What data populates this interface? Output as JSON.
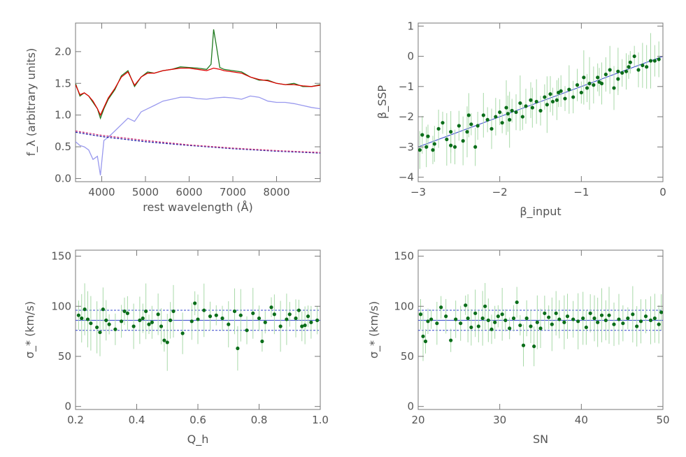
{
  "chart_data": [
    {
      "type": "line",
      "xlabel": "rest wavelength (Å)",
      "ylabel": "f_λ (arbitrary units)",
      "xlim": [
        3400,
        9000
      ],
      "ylim": [
        -0.05,
        2.45
      ],
      "xticks": [
        4000,
        5000,
        6000,
        7000,
        8000
      ],
      "yticks": [
        0.0,
        0.5,
        1.0,
        1.5,
        2.0
      ],
      "xticklabels": [
        "4000",
        "5000",
        "6000",
        "7000",
        "8000"
      ],
      "yticklabels": [
        "0.0",
        "0.5",
        "1.0",
        "1.5",
        "2.0"
      ],
      "grid": false,
      "series": [
        {
          "color": "#1f7a1f",
          "style": "solid",
          "x": [
            3400,
            3500,
            3600,
            3700,
            3800,
            3900,
            3970,
            4050,
            4150,
            4300,
            4450,
            4600,
            4750,
            4900,
            5050,
            5200,
            5400,
            5600,
            5800,
            6000,
            6200,
            6400,
            6500,
            6560,
            6620,
            6700,
            6800,
            7000,
            7200,
            7400,
            7600,
            7800,
            8000,
            8200,
            8400,
            8600,
            8800,
            9000
          ],
          "y": [
            1.5,
            1.3,
            1.35,
            1.3,
            1.2,
            1.1,
            0.95,
            1.1,
            1.25,
            1.4,
            1.62,
            1.7,
            1.45,
            1.6,
            1.68,
            1.66,
            1.7,
            1.72,
            1.76,
            1.75,
            1.74,
            1.72,
            1.8,
            2.35,
            2.1,
            1.75,
            1.72,
            1.7,
            1.68,
            1.6,
            1.55,
            1.55,
            1.5,
            1.48,
            1.5,
            1.45,
            1.45,
            1.48
          ]
        },
        {
          "color": "#e00000",
          "style": "solid",
          "x": [
            3400,
            3500,
            3600,
            3700,
            3800,
            3900,
            3970,
            4050,
            4150,
            4300,
            4450,
            4600,
            4750,
            4900,
            5050,
            5200,
            5400,
            5600,
            5800,
            6000,
            6200,
            6400,
            6560,
            6700,
            6800,
            7000,
            7200,
            7400,
            7600,
            7800,
            8000,
            8200,
            8400,
            8600,
            8800,
            9000
          ],
          "y": [
            1.48,
            1.32,
            1.35,
            1.3,
            1.22,
            1.1,
            1.0,
            1.12,
            1.27,
            1.42,
            1.6,
            1.68,
            1.47,
            1.6,
            1.66,
            1.66,
            1.7,
            1.72,
            1.74,
            1.74,
            1.72,
            1.7,
            1.74,
            1.72,
            1.7,
            1.68,
            1.66,
            1.6,
            1.56,
            1.54,
            1.5,
            1.48,
            1.48,
            1.46,
            1.45,
            1.47
          ]
        },
        {
          "color": "#9999ee",
          "style": "solid",
          "x": [
            3400,
            3500,
            3600,
            3700,
            3800,
            3900,
            3970,
            4050,
            4150,
            4300,
            4450,
            4600,
            4750,
            4900,
            5050,
            5200,
            5400,
            5600,
            5800,
            6000,
            6200,
            6400,
            6600,
            6800,
            7000,
            7200,
            7400,
            7600,
            7800,
            8000,
            8200,
            8400,
            8600,
            8800,
            9000
          ],
          "y": [
            0.58,
            0.52,
            0.5,
            0.45,
            0.3,
            0.35,
            0.05,
            0.6,
            0.65,
            0.75,
            0.85,
            0.95,
            0.9,
            1.05,
            1.1,
            1.15,
            1.22,
            1.25,
            1.28,
            1.28,
            1.26,
            1.25,
            1.27,
            1.28,
            1.27,
            1.25,
            1.3,
            1.28,
            1.22,
            1.2,
            1.2,
            1.18,
            1.15,
            1.12,
            1.1
          ]
        },
        {
          "color": "#2222aa",
          "style": "dashed",
          "x": [
            3400,
            4000,
            5000,
            6000,
            7000,
            8000,
            9000
          ],
          "y": [
            0.73,
            0.66,
            0.58,
            0.52,
            0.47,
            0.43,
            0.4
          ]
        },
        {
          "color": "#cc3377",
          "style": "dashed",
          "x": [
            3400,
            4000,
            5000,
            6000,
            7000,
            8000,
            9000
          ],
          "y": [
            0.75,
            0.68,
            0.6,
            0.53,
            0.48,
            0.44,
            0.41
          ]
        }
      ]
    },
    {
      "type": "scatter",
      "xlabel": "β_input",
      "ylabel": "β_SSP",
      "xlim": [
        -3,
        0
      ],
      "ylim": [
        -4.15,
        1.1
      ],
      "xticks": [
        -3,
        -2,
        -1,
        0
      ],
      "yticks": [
        -4,
        -3,
        -2,
        -1,
        0,
        1
      ],
      "xticklabels": [
        "−3",
        "−2",
        "−1",
        "0"
      ],
      "yticklabels": [
        "−4",
        "−3",
        "−2",
        "−1",
        "0",
        "1"
      ],
      "grid": false,
      "point_color": "#0b6e1a",
      "errorbar_color": "#a8d9a8",
      "reference_line": {
        "color": "#3344cc",
        "x": [
          -3,
          0
        ],
        "y": [
          -3,
          0
        ]
      },
      "points": [
        [
          -2.95,
          -2.6
        ],
        [
          -2.9,
          -3.0
        ],
        [
          -2.88,
          -2.65
        ],
        [
          -2.82,
          -3.1
        ],
        [
          -2.8,
          -2.9
        ],
        [
          -2.75,
          -2.4
        ],
        [
          -2.7,
          -2.2
        ],
        [
          -2.65,
          -2.75
        ],
        [
          -2.6,
          -2.5
        ],
        [
          -2.55,
          -3.0
        ],
        [
          -2.5,
          -2.3
        ],
        [
          -2.45,
          -2.8
        ],
        [
          -2.38,
          -1.95
        ],
        [
          -2.35,
          -2.25
        ],
        [
          -2.3,
          -3.0
        ],
        [
          -2.27,
          -2.3
        ],
        [
          -2.2,
          -1.95
        ],
        [
          -2.15,
          -2.1
        ],
        [
          -2.1,
          -2.4
        ],
        [
          -2.05,
          -2.0
        ],
        [
          -2.0,
          -1.85
        ],
        [
          -1.97,
          -2.2
        ],
        [
          -1.92,
          -1.7
        ],
        [
          -1.88,
          -2.1
        ],
        [
          -1.85,
          -1.8
        ],
        [
          -1.8,
          -1.85
        ],
        [
          -1.75,
          -1.55
        ],
        [
          -1.72,
          -2.0
        ],
        [
          -1.68,
          -1.65
        ],
        [
          -1.6,
          -1.7
        ],
        [
          -1.55,
          -1.5
        ],
        [
          -1.5,
          -1.8
        ],
        [
          -1.45,
          -1.35
        ],
        [
          -1.42,
          -1.6
        ],
        [
          -1.38,
          -1.25
        ],
        [
          -1.35,
          -1.5
        ],
        [
          -1.3,
          -1.45
        ],
        [
          -1.25,
          -1.15
        ],
        [
          -1.2,
          -1.4
        ],
        [
          -1.15,
          -1.1
        ],
        [
          -1.1,
          -1.35
        ],
        [
          -1.05,
          -0.95
        ],
        [
          -1.0,
          -1.2
        ],
        [
          -0.97,
          -0.7
        ],
        [
          -0.93,
          -1.05
        ],
        [
          -0.9,
          -0.9
        ],
        [
          -0.85,
          -0.95
        ],
        [
          -0.8,
          -0.7
        ],
        [
          -0.75,
          -0.9
        ],
        [
          -0.7,
          -0.6
        ],
        [
          -0.65,
          -0.45
        ],
        [
          -0.6,
          -1.05
        ],
        [
          -0.55,
          -0.75
        ],
        [
          -0.5,
          -0.55
        ],
        [
          -0.45,
          -0.5
        ],
        [
          -0.4,
          -0.2
        ],
        [
          -0.35,
          0.0
        ],
        [
          -0.3,
          -0.45
        ],
        [
          -0.25,
          -0.3
        ],
        [
          -0.2,
          -0.35
        ],
        [
          -0.15,
          -0.15
        ],
        [
          -0.1,
          -0.15
        ],
        [
          -0.05,
          -0.1
        ],
        [
          -2.98,
          -3.1
        ],
        [
          -2.6,
          -2.95
        ],
        [
          -2.4,
          -2.5
        ],
        [
          -1.9,
          -1.9
        ],
        [
          -1.62,
          -1.45
        ],
        [
          -1.28,
          -1.2
        ],
        [
          -0.78,
          -0.85
        ],
        [
          -0.55,
          -0.5
        ],
        [
          -0.42,
          -0.35
        ]
      ]
    },
    {
      "type": "scatter",
      "xlabel": "Q_h",
      "ylabel": "σ_* (km/s)",
      "xlim": [
        0.2,
        1.0
      ],
      "ylim": [
        -3,
        156
      ],
      "xticks": [
        0.2,
        0.4,
        0.6,
        0.8,
        1.0
      ],
      "yticks": [
        0,
        50,
        100,
        150
      ],
      "xticklabels": [
        "0.2",
        "0.4",
        "0.6",
        "0.8",
        "1.0"
      ],
      "yticklabels": [
        "0",
        "50",
        "100",
        "150"
      ],
      "grid": false,
      "point_color": "#0b6e1a",
      "errorbar_color": "#a8d9a8",
      "hlines": [
        {
          "y": 86,
          "color": "#3344cc",
          "style": "solid"
        },
        {
          "y": 96,
          "color": "#3344cc",
          "style": "dashed"
        },
        {
          "y": 76,
          "color": "#3344cc",
          "style": "dashed"
        }
      ],
      "points": [
        [
          0.21,
          91
        ],
        [
          0.22,
          88
        ],
        [
          0.23,
          97
        ],
        [
          0.24,
          87
        ],
        [
          0.25,
          83
        ],
        [
          0.27,
          79
        ],
        [
          0.28,
          74
        ],
        [
          0.29,
          97
        ],
        [
          0.3,
          86
        ],
        [
          0.31,
          82
        ],
        [
          0.33,
          77
        ],
        [
          0.35,
          85
        ],
        [
          0.36,
          95
        ],
        [
          0.37,
          93
        ],
        [
          0.39,
          80
        ],
        [
          0.41,
          86
        ],
        [
          0.42,
          88
        ],
        [
          0.43,
          95
        ],
        [
          0.44,
          82
        ],
        [
          0.45,
          84
        ],
        [
          0.47,
          92
        ],
        [
          0.48,
          80
        ],
        [
          0.49,
          66
        ],
        [
          0.5,
          64
        ],
        [
          0.51,
          86
        ],
        [
          0.52,
          95
        ],
        [
          0.55,
          73
        ],
        [
          0.58,
          85
        ],
        [
          0.59,
          103
        ],
        [
          0.6,
          87
        ],
        [
          0.62,
          96
        ],
        [
          0.64,
          90
        ],
        [
          0.66,
          91
        ],
        [
          0.68,
          88
        ],
        [
          0.7,
          82
        ],
        [
          0.72,
          95
        ],
        [
          0.73,
          58
        ],
        [
          0.74,
          91
        ],
        [
          0.76,
          76
        ],
        [
          0.78,
          93
        ],
        [
          0.8,
          88
        ],
        [
          0.81,
          65
        ],
        [
          0.82,
          84
        ],
        [
          0.84,
          99
        ],
        [
          0.85,
          92
        ],
        [
          0.87,
          80
        ],
        [
          0.89,
          87
        ],
        [
          0.9,
          92
        ],
        [
          0.92,
          88
        ],
        [
          0.93,
          96
        ],
        [
          0.94,
          80
        ],
        [
          0.95,
          81
        ],
        [
          0.96,
          90
        ],
        [
          0.97,
          84
        ],
        [
          0.99,
          86
        ]
      ]
    },
    {
      "type": "scatter",
      "xlabel": "SN",
      "ylabel": "σ_* (km/s)",
      "xlim": [
        20,
        50
      ],
      "ylim": [
        -3,
        156
      ],
      "xticks": [
        20,
        30,
        40,
        50
      ],
      "yticks": [
        0,
        50,
        100,
        150
      ],
      "xticklabels": [
        "20",
        "30",
        "40",
        "50"
      ],
      "yticklabels": [
        "0",
        "50",
        "100",
        "150"
      ],
      "grid": false,
      "point_color": "#0b6e1a",
      "errorbar_color": "#a8d9a8",
      "hlines": [
        {
          "y": 86,
          "color": "#3344cc",
          "style": "solid"
        },
        {
          "y": 96,
          "color": "#3344cc",
          "style": "dashed"
        },
        {
          "y": 76,
          "color": "#3344cc",
          "style": "dashed"
        }
      ],
      "points": [
        [
          20.3,
          92
        ],
        [
          20.6,
          70
        ],
        [
          20.9,
          65
        ],
        [
          21.2,
          85
        ],
        [
          21.6,
          87
        ],
        [
          22.3,
          83
        ],
        [
          22.8,
          99
        ],
        [
          23.4,
          90
        ],
        [
          24.0,
          66
        ],
        [
          24.6,
          87
        ],
        [
          25.2,
          83
        ],
        [
          25.8,
          101
        ],
        [
          26.1,
          88
        ],
        [
          26.5,
          79
        ],
        [
          27.0,
          93
        ],
        [
          27.4,
          80
        ],
        [
          27.9,
          88
        ],
        [
          28.2,
          100
        ],
        [
          28.6,
          86
        ],
        [
          29.0,
          77
        ],
        [
          29.4,
          84
        ],
        [
          29.8,
          90
        ],
        [
          30.3,
          92
        ],
        [
          30.7,
          86
        ],
        [
          31.2,
          78
        ],
        [
          31.7,
          88
        ],
        [
          32.1,
          104
        ],
        [
          32.5,
          81
        ],
        [
          32.9,
          61
        ],
        [
          33.3,
          88
        ],
        [
          33.8,
          80
        ],
        [
          34.2,
          60
        ],
        [
          34.6,
          84
        ],
        [
          35.0,
          78
        ],
        [
          35.5,
          93
        ],
        [
          36.0,
          89
        ],
        [
          36.4,
          82
        ],
        [
          36.9,
          93
        ],
        [
          37.3,
          87
        ],
        [
          37.9,
          84
        ],
        [
          38.3,
          90
        ],
        [
          39.0,
          87
        ],
        [
          39.6,
          85
        ],
        [
          40.2,
          88
        ],
        [
          40.6,
          79
        ],
        [
          41.1,
          93
        ],
        [
          41.6,
          88
        ],
        [
          42.0,
          84
        ],
        [
          42.5,
          91
        ],
        [
          43.0,
          86
        ],
        [
          43.4,
          91
        ],
        [
          44.0,
          82
        ],
        [
          44.6,
          87
        ],
        [
          45.1,
          83
        ],
        [
          45.7,
          88
        ],
        [
          46.3,
          92
        ],
        [
          46.8,
          80
        ],
        [
          47.3,
          85
        ],
        [
          47.9,
          90
        ],
        [
          48.5,
          86
        ],
        [
          49.0,
          88
        ],
        [
          49.5,
          82
        ],
        [
          49.8,
          94
        ]
      ]
    }
  ]
}
